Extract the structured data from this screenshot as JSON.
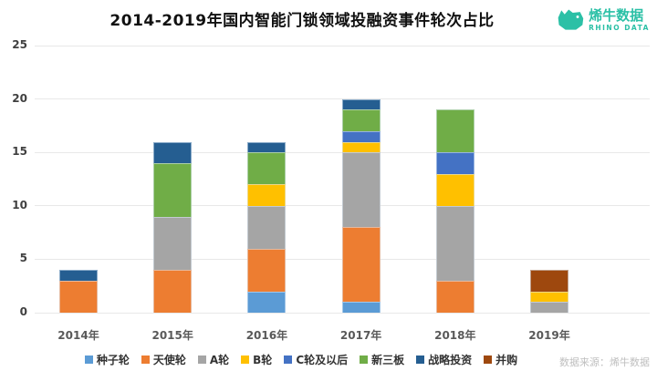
{
  "header": {
    "logo": {
      "name": "烯牛数据",
      "subtitle": "RHINO DATA",
      "color": "#2BC0A6"
    }
  },
  "footer": {
    "source": "数据来源：烯牛数据"
  },
  "chart_data": {
    "type": "bar",
    "stacked": true,
    "title": "2014-2019年国内智能门锁领域投融资事件轮次占比",
    "categories": [
      "2014年",
      "2015年",
      "2016年",
      "2017年",
      "2018年",
      "2019年"
    ],
    "series": [
      {
        "name": "种子轮",
        "color": "#5B9BD5",
        "values": [
          0,
          0,
          2,
          1,
          0,
          0
        ]
      },
      {
        "name": "天使轮",
        "color": "#ED7D31",
        "values": [
          3,
          4,
          4,
          7,
          3,
          0
        ]
      },
      {
        "name": "A轮",
        "color": "#A5A5A5",
        "values": [
          0,
          5,
          4,
          7,
          7,
          1
        ]
      },
      {
        "name": "B轮",
        "color": "#FFC000",
        "values": [
          0,
          0,
          2,
          1,
          3,
          1
        ]
      },
      {
        "name": "C轮及以后",
        "color": "#4472C4",
        "values": [
          0,
          0,
          0,
          1,
          2,
          0
        ]
      },
      {
        "name": "新三板",
        "color": "#70AD47",
        "values": [
          0,
          5,
          3,
          2,
          4,
          0
        ]
      },
      {
        "name": "战略投资",
        "color": "#255E91",
        "values": [
          1,
          2,
          1,
          1,
          0,
          0
        ]
      },
      {
        "name": "并购",
        "color": "#9E480E",
        "values": [
          0,
          0,
          0,
          0,
          0,
          2
        ]
      }
    ],
    "totals": [
      4,
      16,
      16,
      20,
      19,
      4
    ],
    "ylim": [
      0,
      25
    ],
    "yticks": [
      0,
      5,
      10,
      15,
      20,
      25
    ],
    "grid": true,
    "legend_position": "bottom",
    "xlabel": "",
    "ylabel": ""
  }
}
